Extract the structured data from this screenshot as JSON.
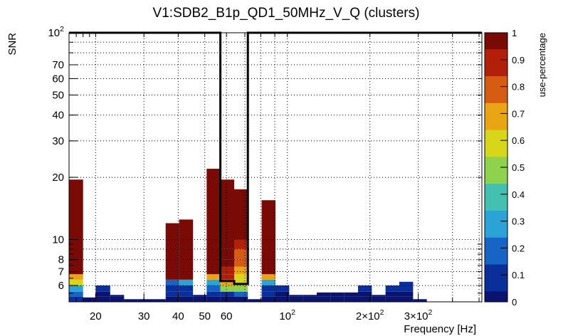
{
  "chart_data": {
    "type": "heatmap",
    "title": "V1:SDB2_B1p_QD1_50MHz_V_Q (clusters)",
    "xlabel": "Frequency [Hz]",
    "ylabel": "SNR",
    "zlabel": "use-percentage",
    "x_scale": "log",
    "y_scale": "log",
    "xlim": [
      16,
      512
    ],
    "ylim": [
      5,
      100
    ],
    "zlim": [
      0,
      1
    ],
    "grid": true,
    "x_ticks": [
      {
        "value": 20,
        "label": "20"
      },
      {
        "value": 30,
        "label": "30"
      },
      {
        "value": 40,
        "label": "40"
      },
      {
        "value": 50,
        "label": "50"
      },
      {
        "value": 60,
        "label": "60"
      },
      {
        "value": 100,
        "label": "10^2"
      },
      {
        "value": 200,
        "label": "2×10^2"
      },
      {
        "value": 300,
        "label": "3×10^2"
      }
    ],
    "y_ticks": [
      {
        "value": 6,
        "label": "6"
      },
      {
        "value": 7,
        "label": "7"
      },
      {
        "value": 8,
        "label": "8"
      },
      {
        "value": 10,
        "label": "10"
      },
      {
        "value": 20,
        "label": "20"
      },
      {
        "value": 30,
        "label": "30"
      },
      {
        "value": 40,
        "label": "40"
      },
      {
        "value": 50,
        "label": "50"
      },
      {
        "value": 60,
        "label": "60"
      },
      {
        "value": 70,
        "label": "70"
      },
      {
        "value": 100,
        "label": "10^2"
      }
    ],
    "z_ticks": [
      {
        "value": 0,
        "label": "0"
      },
      {
        "value": 0.1,
        "label": "0.1"
      },
      {
        "value": 0.2,
        "label": "0.2"
      },
      {
        "value": 0.3,
        "label": "0.3"
      },
      {
        "value": 0.4,
        "label": "0.4"
      },
      {
        "value": 0.5,
        "label": "0.5"
      },
      {
        "value": 0.6,
        "label": "0.6"
      },
      {
        "value": 0.7,
        "label": "0.7"
      },
      {
        "value": 0.8,
        "label": "0.8"
      },
      {
        "value": 0.9,
        "label": "0.9"
      },
      {
        "value": 1,
        "label": "1"
      }
    ],
    "y_bins": [
      5,
      5.3,
      5.6,
      6,
      6.4,
      6.8,
      7.4,
      8,
      9,
      10,
      100
    ],
    "columns": [
      {
        "x0": 16,
        "x1": 18,
        "y_top": 19.5,
        "cells": [
          0.05,
          0.2,
          0.3,
          0.55,
          0.7,
          1
        ]
      },
      {
        "x0": 18,
        "x1": 20,
        "y_top": 5.25,
        "cells": [
          0.02
        ]
      },
      {
        "x0": 20,
        "x1": 22.6,
        "y_top": 6.0,
        "cells": [
          0.02,
          0.04,
          0.06
        ]
      },
      {
        "x0": 22.6,
        "x1": 25.4,
        "y_top": 5.4,
        "cells": [
          0.02,
          0.04
        ]
      },
      {
        "x0": 25.4,
        "x1": 28.5,
        "y_top": 5.15,
        "cells": [
          0.02
        ]
      },
      {
        "x0": 28.5,
        "x1": 32,
        "y_top": 5.15,
        "cells": [
          0.02
        ]
      },
      {
        "x0": 32,
        "x1": 36,
        "y_top": 5.15,
        "cells": [
          0.02
        ]
      },
      {
        "x0": 36,
        "x1": 40.3,
        "y_top": 12.0,
        "cells": [
          0.02,
          0.06,
          0.12,
          0.2,
          1
        ]
      },
      {
        "x0": 40.3,
        "x1": 45.3,
        "y_top": 12.5,
        "cells": [
          0.02,
          0.06,
          0.12,
          0.25,
          1
        ]
      },
      {
        "x0": 45.3,
        "x1": 50.8,
        "y_top": 5.4,
        "cells": [
          0.02,
          0.04
        ]
      },
      {
        "x0": 50.8,
        "x1": 57,
        "y_top": 22.0,
        "cells": [
          0.02,
          0.12,
          0.18,
          0.3,
          0.72,
          1
        ]
      },
      {
        "x0": 57,
        "x1": 64,
        "y_top": 19.5,
        "cells": [
          0.02,
          0.08,
          0.5,
          0.65,
          0.85,
          0.92,
          0.95,
          0.97,
          0.99,
          1
        ]
      },
      {
        "x0": 64,
        "x1": 71.8,
        "y_top": 17.5,
        "cells": [
          0.04,
          0.15,
          0.45,
          0.55,
          0.62,
          0.7,
          0.78,
          0.82,
          0.85,
          0.95
        ]
      },
      {
        "x0": 71.8,
        "x1": 80.6,
        "y_top": 5.15,
        "cells": [
          0.02
        ]
      },
      {
        "x0": 80.6,
        "x1": 90.5,
        "y_top": 15.5,
        "cells": [
          0.02,
          0.06,
          0.12,
          0.25,
          0.72,
          1
        ]
      },
      {
        "x0": 90.5,
        "x1": 101.6,
        "y_top": 6.0,
        "cells": [
          0.02,
          0.04,
          0.06
        ]
      },
      {
        "x0": 101.6,
        "x1": 114,
        "y_top": 5.4,
        "cells": [
          0.02,
          0.04
        ]
      },
      {
        "x0": 114,
        "x1": 128,
        "y_top": 5.4,
        "cells": [
          0.02,
          0.04
        ]
      },
      {
        "x0": 128,
        "x1": 143.7,
        "y_top": 5.55,
        "cells": [
          0.02,
          0.04
        ]
      },
      {
        "x0": 143.7,
        "x1": 161.3,
        "y_top": 5.55,
        "cells": [
          0.02,
          0.04
        ]
      },
      {
        "x0": 161.3,
        "x1": 181,
        "y_top": 5.55,
        "cells": [
          0.02,
          0.04
        ]
      },
      {
        "x0": 181,
        "x1": 203.2,
        "y_top": 6.0,
        "cells": [
          0.02,
          0.04,
          0.06
        ]
      },
      {
        "x0": 203.2,
        "x1": 228,
        "y_top": 5.4,
        "cells": [
          0.02,
          0.04
        ]
      },
      {
        "x0": 228,
        "x1": 256,
        "y_top": 6.0,
        "cells": [
          0.02,
          0.04,
          0.06
        ]
      },
      {
        "x0": 256,
        "x1": 287.4,
        "y_top": 6.25,
        "cells": [
          0.02,
          0.04,
          0.06
        ]
      },
      {
        "x0": 287.4,
        "x1": 322.5,
        "y_top": 5.15,
        "cells": [
          0.02
        ]
      }
    ],
    "overlay_contour": [
      [
        16,
        100
      ],
      [
        57,
        100
      ],
      [
        57,
        6.3
      ],
      [
        64,
        6.3
      ],
      [
        64,
        6.1
      ],
      [
        71.8,
        6.1
      ],
      [
        71.8,
        100
      ],
      [
        512,
        100
      ]
    ],
    "colors": {
      "background": "#ffffff",
      "frame": "#000000",
      "grid": "#000000",
      "overlay": "#000000"
    },
    "palette": [
      "#0a1470",
      "#0b2f9a",
      "#1664c5",
      "#2ba3d6",
      "#43c0b0",
      "#8fd24d",
      "#d8d61a",
      "#eaa514",
      "#d65c14",
      "#b2200a",
      "#7a0a05"
    ]
  }
}
